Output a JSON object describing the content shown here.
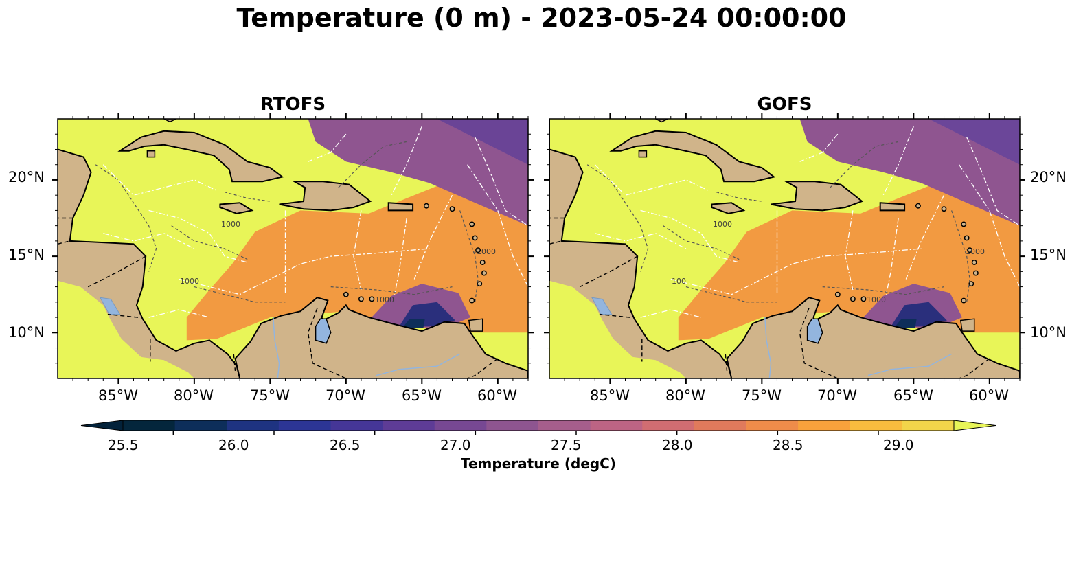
{
  "figure": {
    "title": "Temperature (0 m) - 2023-05-24 00:00:00"
  },
  "panels": [
    {
      "title": "RTOFS"
    },
    {
      "title": "GOFS"
    }
  ],
  "axes": {
    "lon_labels": [
      "85°W",
      "80°W",
      "75°W",
      "70°W",
      "65°W",
      "60°W"
    ],
    "lat_labels": [
      "20°N",
      "15°N",
      "10°N"
    ],
    "lon_range": [
      -89,
      -58
    ],
    "lat_range": [
      7,
      24
    ]
  },
  "bathymetry_labels": [
    "1000",
    "1000",
    "1000",
    "-1000",
    "100",
    "1000",
    "1000",
    "1000"
  ],
  "colorbar": {
    "label": "Temperature (degC)",
    "ticks": [
      "25.5",
      "26.0",
      "26.5",
      "27.0",
      "27.5",
      "28.0",
      "28.5",
      "29.0"
    ],
    "tick_values": [
      25.5,
      26.0,
      26.5,
      27.0,
      27.5,
      28.0,
      28.5,
      29.0
    ],
    "range": [
      25.25,
      29.375
    ],
    "colors": [
      "#04263c",
      "#0d2e5a",
      "#1e3381",
      "#2c3595",
      "#453697",
      "#5e3c96",
      "#774893",
      "#8e5590",
      "#a65e8c",
      "#bd6484",
      "#d16d72",
      "#e07a5c",
      "#ef8c4a",
      "#f8a23c",
      "#f8bc3e",
      "#f3d54a"
    ],
    "extend_low_color": "#03223a",
    "extend_high_color": "#e8f558"
  },
  "colors": {
    "land": "#d0b48a",
    "lake": "#93b5de",
    "warm_water": "#e8f558",
    "orange_water": "#f29a41",
    "purple_water": "#8f5590",
    "dark_water": "#2a2f7c"
  }
}
